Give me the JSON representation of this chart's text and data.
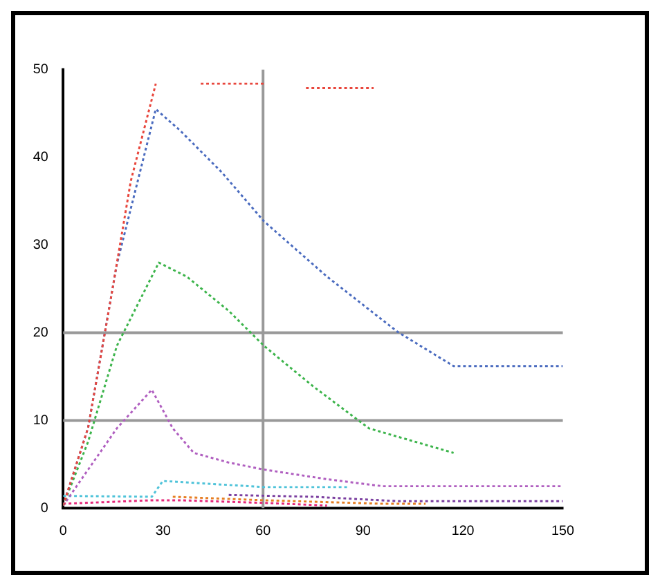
{
  "chart_data": {
    "type": "line",
    "xlim": [
      0,
      150
    ],
    "xticks": [
      0,
      30,
      60,
      90,
      120,
      150
    ],
    "ylim": [
      0,
      50
    ],
    "yticks": [
      0,
      10,
      20,
      30,
      40,
      50
    ],
    "line_style": "dotted",
    "marker": "none",
    "series": [
      {
        "color": "#e8463c",
        "x": [
          0,
          7.5,
          14,
          20.3,
          27.8,
          null,
          41.3,
          60.3,
          null,
          72.9,
          93.2
        ],
        "values": [
          0.3,
          9.2,
          23.2,
          37.3,
          48.4,
          null,
          48.4,
          48.4,
          null,
          47.9,
          47.9
        ]
      },
      {
        "color": "#4a6bbf",
        "x": [
          0,
          7.5,
          16.1,
          27.8,
          35,
          47.6,
          60.3,
          79.2,
          100.4,
          117.2,
          150
        ],
        "values": [
          0.3,
          9.2,
          27.8,
          45.5,
          43.1,
          38.3,
          32.7,
          26.4,
          20.1,
          16.2,
          16.2
        ]
      },
      {
        "color": "#3cb44b",
        "x": [
          0,
          7.5,
          16.1,
          28.7,
          37.1,
          49.7,
          60.3,
          75,
          91.8,
          117.2
        ],
        "values": [
          0.3,
          7.6,
          18.5,
          28,
          26.4,
          22.5,
          18.5,
          13.9,
          9.1,
          6.3
        ]
      },
      {
        "color": "#b05fc0",
        "x": [
          0,
          7.5,
          16.1,
          26.6,
          32.9,
          39.2,
          49.7,
          60.3,
          79.2,
          96,
          113,
          150
        ],
        "values": [
          0.3,
          4.4,
          9.1,
          13.5,
          9.1,
          6.3,
          5.2,
          4.4,
          3.3,
          2.5,
          2.5,
          2.5
        ]
      },
      {
        "color": "#4fc3d9",
        "x": [
          0,
          26.6,
          29.9,
          60.3,
          85.5
        ],
        "values": [
          1.4,
          1.3,
          3.1,
          2.4,
          2.4
        ]
      },
      {
        "color": "#7b3fa0",
        "x": [
          49.7,
          75,
          100.4,
          150
        ],
        "values": [
          1.5,
          1.3,
          0.8,
          0.8
        ]
      },
      {
        "color": "#e67e22",
        "x": [
          32.9,
          60.3,
          96,
          108.8
        ],
        "values": [
          1.3,
          0.9,
          0.5,
          0.5
        ]
      },
      {
        "color": "#e6287a",
        "x": [
          0,
          26.6,
          35,
          60.3,
          79.2
        ],
        "values": [
          0.5,
          0.9,
          0.9,
          0.6,
          0.3
        ]
      }
    ],
    "ref_lines": [
      {
        "axis": "y",
        "value": 20,
        "color": "#999999"
      },
      {
        "axis": "y",
        "value": 10,
        "color": "#999999"
      },
      {
        "axis": "x",
        "value": 60,
        "color": "#999999"
      }
    ]
  }
}
